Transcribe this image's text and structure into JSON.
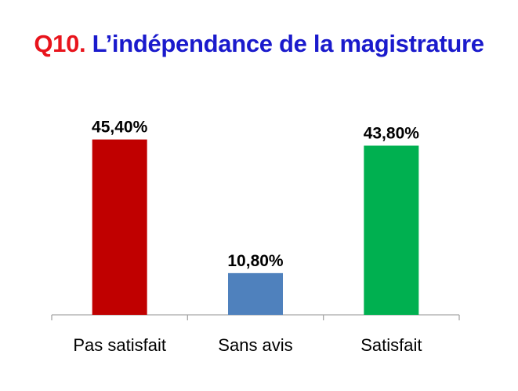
{
  "title": {
    "prefix": "Q10.",
    "text": "L’indépendance de la magistrature"
  },
  "colors": {
    "title_prefix": "#e8141c",
    "title_text": "#1a1acc"
  },
  "chart_data": {
    "type": "bar",
    "categories": [
      "Pas satisfait",
      "Sans avis",
      "Satisfait"
    ],
    "values": [
      45.4,
      10.8,
      43.8
    ],
    "data_labels": [
      "45,40%",
      "10,80%",
      "43,80%"
    ],
    "bar_colors": [
      "#c00000",
      "#4f81bd",
      "#00b050"
    ],
    "xlabel": "",
    "ylabel": "",
    "ylim": [
      0,
      50
    ],
    "grid": false,
    "legend": "none"
  }
}
